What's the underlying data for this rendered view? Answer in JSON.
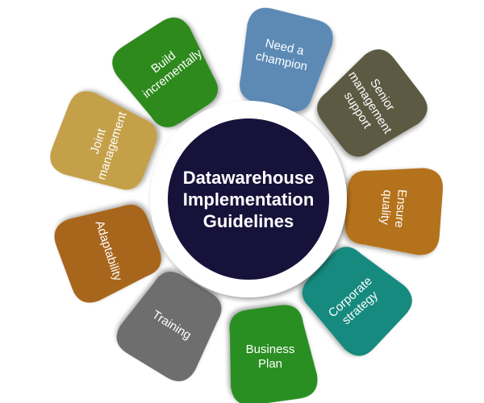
{
  "center": {
    "lines": [
      "Datawarehouse",
      "Implementation",
      "Guidelines"
    ],
    "color": "#16123a",
    "ring_color": "#ffffff"
  },
  "petals": [
    {
      "id": "need-a-champion",
      "lines": [
        "Need a",
        "champion"
      ],
      "color": "#5b8ab5"
    },
    {
      "id": "senior-management-support",
      "lines": [
        "Senior",
        "management",
        "support"
      ],
      "color": "#5c5a42"
    },
    {
      "id": "ensure-quality",
      "lines": [
        "Ensure",
        "quality"
      ],
      "color": "#b5721b"
    },
    {
      "id": "corporate-strategy",
      "lines": [
        "Corporate",
        "strategy"
      ],
      "color": "#128a7e"
    },
    {
      "id": "business-plan",
      "lines": [
        "Business",
        "Plan"
      ],
      "color": "#2c8f22"
    },
    {
      "id": "training",
      "lines": [
        "Training"
      ],
      "color": "#6e6e6e"
    },
    {
      "id": "adaptability",
      "lines": [
        "Adaptability"
      ],
      "color": "#a8661a"
    },
    {
      "id": "joint-management",
      "lines": [
        "Joint",
        "management"
      ],
      "color": "#c4a04a"
    },
    {
      "id": "build-incrementally",
      "lines": [
        "Build",
        "incrementally"
      ],
      "color": "#2d8a1f"
    }
  ]
}
